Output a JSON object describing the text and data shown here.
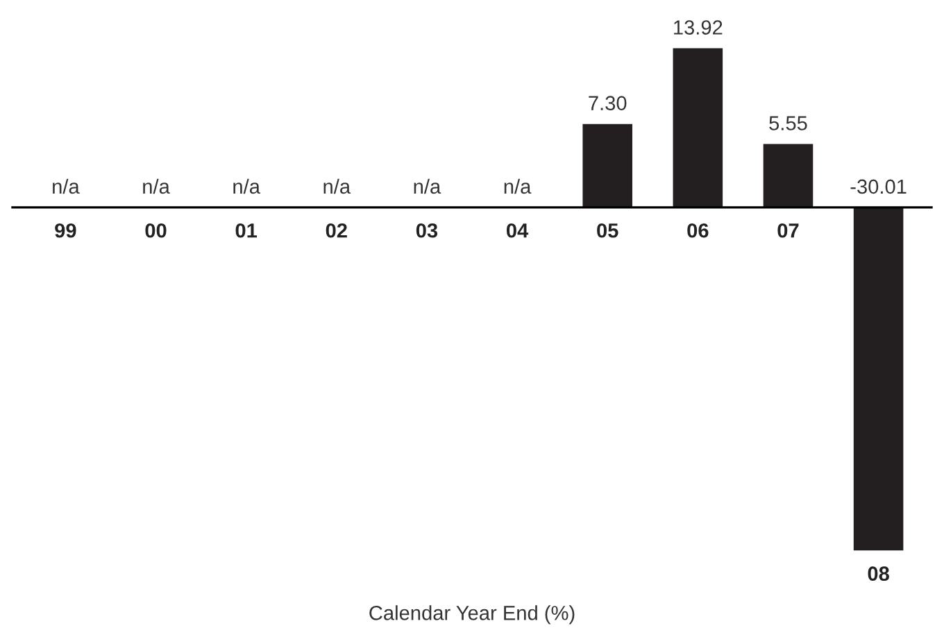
{
  "chart_data": {
    "type": "bar",
    "xlabel": "Calendar Year End (%)",
    "categories": [
      "99",
      "00",
      "01",
      "02",
      "03",
      "04",
      "05",
      "06",
      "07",
      "08"
    ],
    "values": [
      null,
      null,
      null,
      null,
      null,
      null,
      7.3,
      13.92,
      5.55,
      -30.01
    ],
    "value_labels": [
      "n/a",
      "n/a",
      "n/a",
      "n/a",
      "n/a",
      "n/a",
      "7.30",
      "13.92",
      "5.55",
      "-30.01"
    ],
    "color": "#231f20"
  }
}
